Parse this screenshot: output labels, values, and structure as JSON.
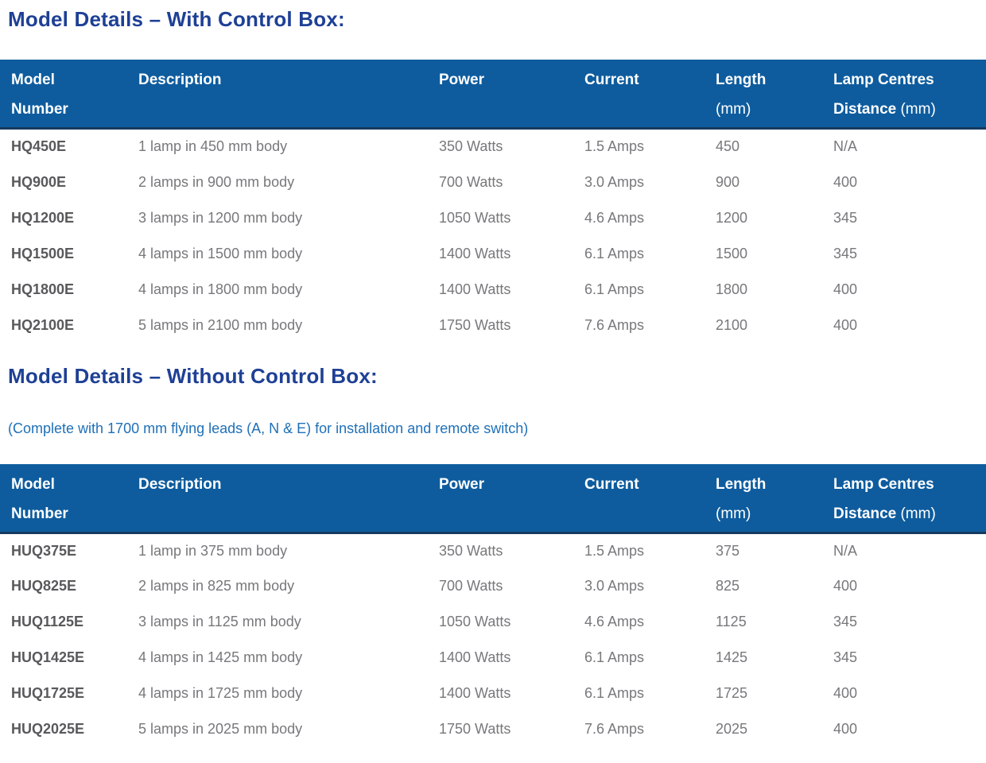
{
  "colors": {
    "title": "#1e4095",
    "note": "#1f70b7",
    "table_header_bg": "#0e5c9e",
    "table_header_rule": "#16395f",
    "header_text": "#ffffff",
    "body_text": "#77787b",
    "model_text": "#58595b"
  },
  "sections": [
    {
      "title": "Model Details – With Control Box:",
      "table": {
        "header": {
          "columns": [
            {
              "l1": "Model",
              "l2_bold": "Number",
              "l2_normal": ""
            },
            {
              "l1": "Description",
              "l2_bold": "",
              "l2_normal": ""
            },
            {
              "l1": "Power",
              "l2_bold": "",
              "l2_normal": ""
            },
            {
              "l1": "Current",
              "l2_bold": "",
              "l2_normal": ""
            },
            {
              "l1": "Length",
              "l2_bold": "",
              "l2_normal": "(mm)"
            },
            {
              "l1": "Lamp Centres",
              "l2_bold": "Distance",
              "l2_normal": "(mm)"
            }
          ]
        },
        "rows": [
          {
            "model": "HQ450E",
            "description": "1 lamp in 450 mm body",
            "power": "350 Watts",
            "current": "1.5 Amps",
            "length": "450",
            "lamp_centres": "N/A"
          },
          {
            "model": "HQ900E",
            "description": "2 lamps in 900 mm body",
            "power": "700 Watts",
            "current": "3.0 Amps",
            "length": "900",
            "lamp_centres": "400"
          },
          {
            "model": "HQ1200E",
            "description": "3 lamps in 1200 mm body",
            "power": "1050 Watts",
            "current": "4.6 Amps",
            "length": "1200",
            "lamp_centres": "345"
          },
          {
            "model": "HQ1500E",
            "description": "4 lamps in 1500 mm body",
            "power": "1400 Watts",
            "current": "6.1 Amps",
            "length": "1500",
            "lamp_centres": "345"
          },
          {
            "model": "HQ1800E",
            "description": "4 lamps in 1800 mm body",
            "power": "1400 Watts",
            "current": "6.1 Amps",
            "length": "1800",
            "lamp_centres": "400"
          },
          {
            "model": "HQ2100E",
            "description": "5 lamps in 2100 mm body",
            "power": "1750 Watts",
            "current": "7.6 Amps",
            "length": "2100",
            "lamp_centres": "400"
          }
        ]
      }
    },
    {
      "title": "Model Details – Without Control Box:",
      "note": "(Complete with 1700 mm flying leads (A, N & E) for installation and remote switch)",
      "table": {
        "header": {
          "columns": [
            {
              "l1": "Model",
              "l2_bold": "Number",
              "l2_normal": ""
            },
            {
              "l1": "Description",
              "l2_bold": "",
              "l2_normal": ""
            },
            {
              "l1": "Power",
              "l2_bold": "",
              "l2_normal": ""
            },
            {
              "l1": "Current",
              "l2_bold": "",
              "l2_normal": ""
            },
            {
              "l1": "Length",
              "l2_bold": "",
              "l2_normal": "(mm)"
            },
            {
              "l1": "Lamp Centres",
              "l2_bold": "Distance",
              "l2_normal": "(mm)"
            }
          ]
        },
        "rows": [
          {
            "model": "HUQ375E",
            "description": "1 lamp in 375 mm body",
            "power": "350 Watts",
            "current": "1.5 Amps",
            "length": "375",
            "lamp_centres": "N/A"
          },
          {
            "model": "HUQ825E",
            "description": "2 lamps in 825 mm body",
            "power": "700 Watts",
            "current": "3.0 Amps",
            "length": "825",
            "lamp_centres": "400"
          },
          {
            "model": "HUQ1125E",
            "description": "3 lamps in 1125 mm body",
            "power": "1050 Watts",
            "current": "4.6 Amps",
            "length": "1125",
            "lamp_centres": "345"
          },
          {
            "model": "HUQ1425E",
            "description": "4 lamps in 1425 mm body",
            "power": "1400 Watts",
            "current": "6.1 Amps",
            "length": "1425",
            "lamp_centres": "345"
          },
          {
            "model": "HUQ1725E",
            "description": "4 lamps in 1725 mm body",
            "power": "1400 Watts",
            "current": "6.1 Amps",
            "length": "1725",
            "lamp_centres": "400"
          },
          {
            "model": "HUQ2025E",
            "description": "5 lamps in 2025 mm body",
            "power": "1750 Watts",
            "current": "7.6 Amps",
            "length": "2025",
            "lamp_centres": "400"
          }
        ]
      }
    }
  ]
}
